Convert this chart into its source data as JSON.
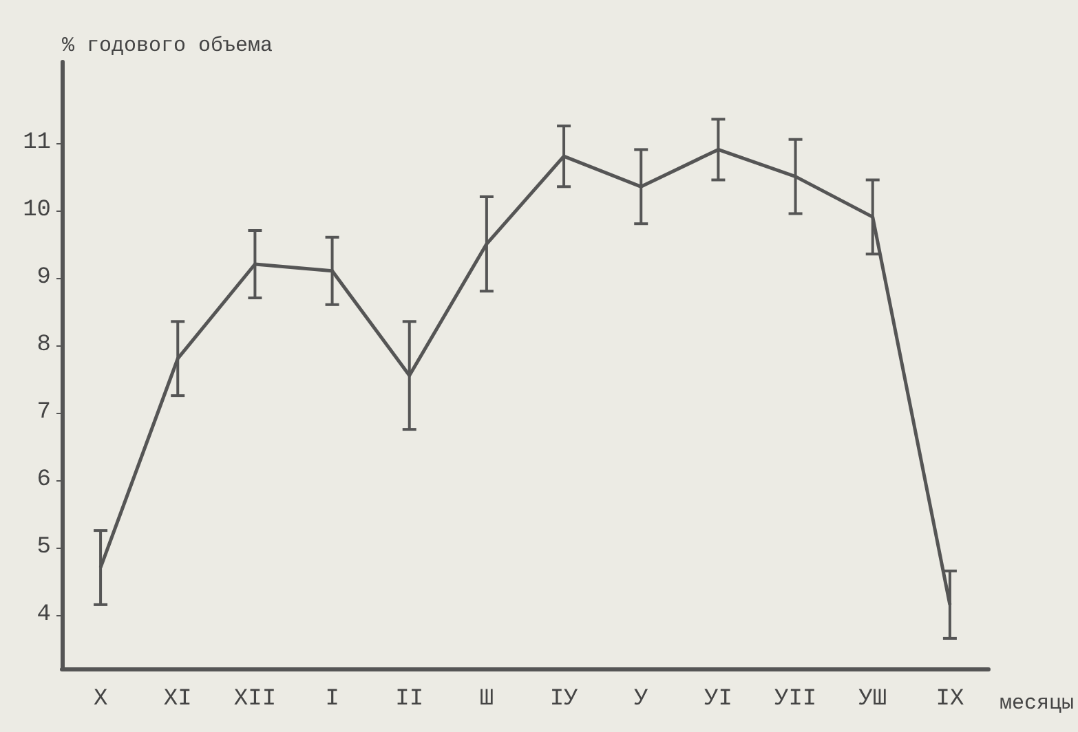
{
  "chart_data": {
    "type": "line",
    "ylabel": "% годового объема",
    "xlabel": "месяцы",
    "categories": [
      "X",
      "XI",
      "XII",
      "I",
      "II",
      "Ш",
      "IУ",
      "У",
      "УI",
      "УII",
      "УШ",
      "IX"
    ],
    "series": [
      {
        "color": "#555555",
        "values": [
          4.7,
          7.8,
          9.2,
          9.1,
          7.55,
          9.5,
          10.8,
          10.35,
          10.9,
          10.5,
          9.9,
          4.15
        ],
        "errors": [
          0.55,
          0.55,
          0.5,
          0.5,
          0.8,
          0.7,
          0.45,
          0.55,
          0.45,
          0.55,
          0.55,
          0.5
        ]
      }
    ],
    "ylim": [
      3.2,
      12.2
    ],
    "yticks": [
      4,
      5,
      6,
      7,
      8,
      9,
      10,
      11
    ],
    "grid": false,
    "marker": "none",
    "line_style": "solid"
  }
}
